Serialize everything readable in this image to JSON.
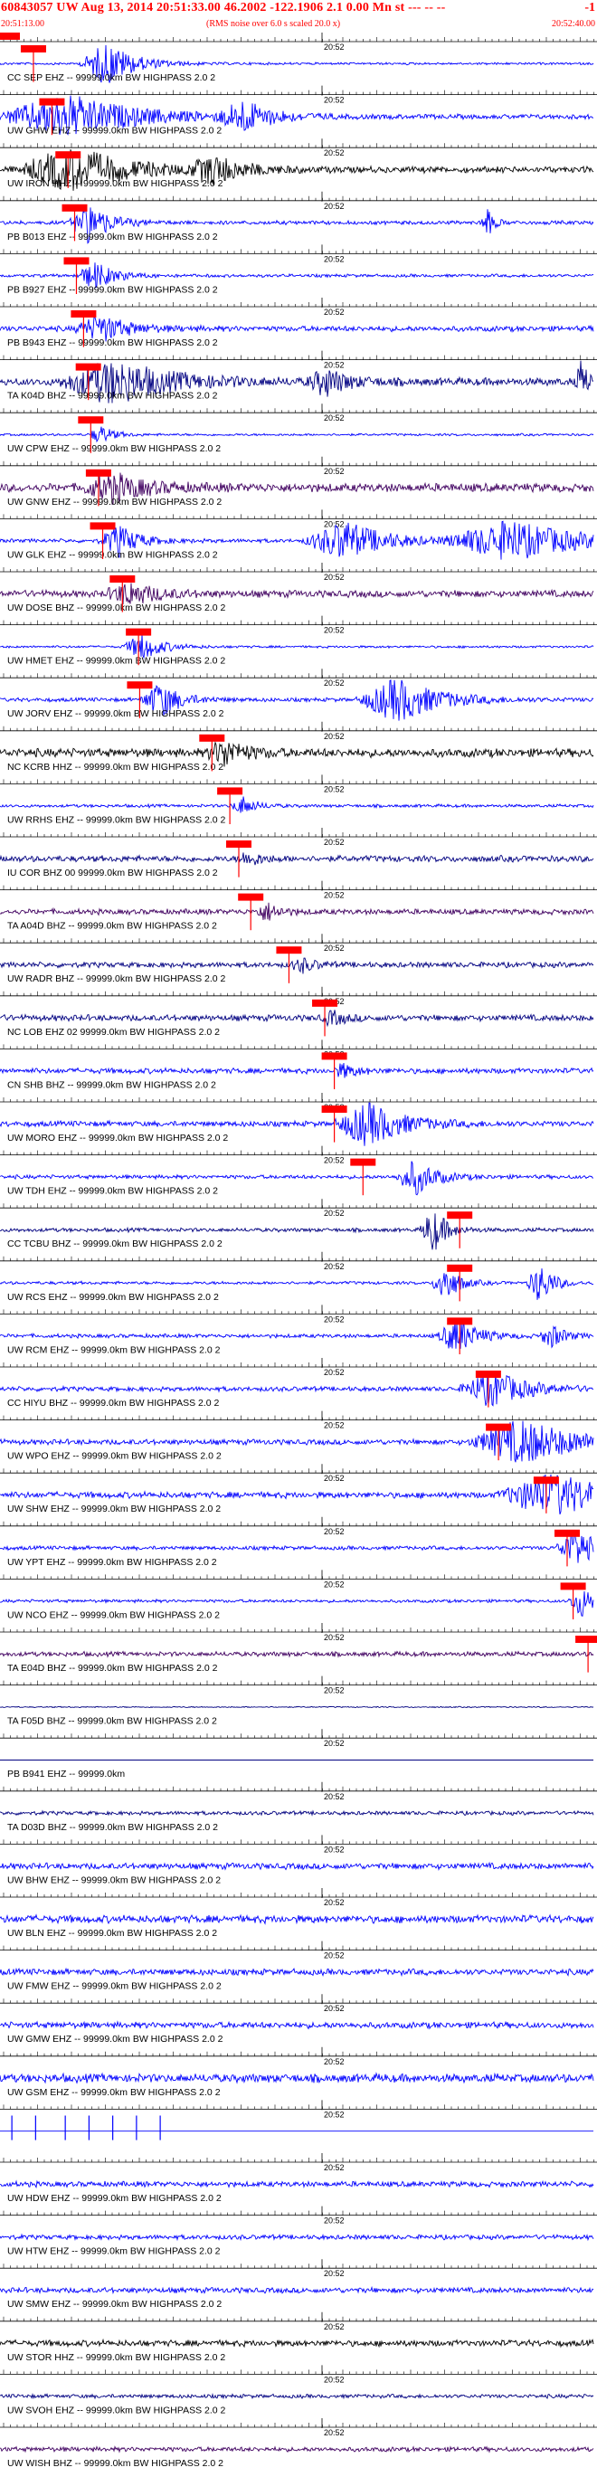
{
  "header": {
    "title": "60843057 UW Aug 13, 2014 20:51:33.00   46.2002 -122.1906  2.1 0.00 Mn st --- -- --",
    "right_label": "-1",
    "start_time": "20:51:13.00",
    "noise_note": "(RMS noise over 6.0 s scaled 20.0 x)",
    "end_time": "20:52:40.00",
    "minute_label": "20:52"
  },
  "colors": {
    "header_text": "#ff0000",
    "trace_blue": "#0000ff",
    "trace_navy": "#000080",
    "trace_black": "#000000",
    "trace_purple": "#400060",
    "pick_marker": "#ff0000",
    "tick_line": "#000000"
  },
  "channels": [
    {
      "label": "CC SEP EHZ -- 99999.0km BW  HIGHPASS  2.0  2",
      "color": "blue",
      "pick": 0.056,
      "bursts": [
        [
          0.18,
          0.04,
          1.0
        ]
      ],
      "noise": 0.06
    },
    {
      "label": "UW GHW EHZ -- 99999.0km BW  HIGHPASS  2.0  2",
      "color": "blue",
      "pick": 0.087,
      "bursts": [
        [
          0.11,
          0.1,
          1.0
        ],
        [
          0.41,
          0.04,
          0.7
        ]
      ],
      "noise": 0.12
    },
    {
      "label": "UW IRON HHZ -- 99999.0km BW  HIGHPASS  2.0  2",
      "color": "black",
      "pick": 0.114,
      "bursts": [
        [
          0.12,
          0.08,
          1.0
        ],
        [
          0.36,
          0.04,
          0.6
        ]
      ],
      "noise": 0.16
    },
    {
      "label": "PB B013 EHZ -- 99999.0km BW  HIGHPASS  2.0  2",
      "color": "blue",
      "pick": 0.125,
      "bursts": [
        [
          0.15,
          0.03,
          0.9
        ],
        [
          0.82,
          0.01,
          0.7
        ]
      ],
      "noise": 0.1
    },
    {
      "label": "PB B927 EHZ -- 99999.0km BW  HIGHPASS  2.0  2",
      "color": "blue",
      "pick": 0.128,
      "bursts": [
        [
          0.16,
          0.03,
          0.6
        ]
      ],
      "noise": 0.08
    },
    {
      "label": "PB B943 EHZ -- 99999.0km BW  HIGHPASS  2.0  2",
      "color": "blue",
      "pick": 0.14,
      "bursts": [
        [
          0.17,
          0.04,
          0.6
        ]
      ],
      "noise": 0.14
    },
    {
      "label": "TA K04D BHZ -- 99999.0km BW  HIGHPASS  2.0  2",
      "color": "navy",
      "pick": 0.148,
      "bursts": [
        [
          0.19,
          0.08,
          1.0
        ],
        [
          0.55,
          0.03,
          0.6
        ],
        [
          0.98,
          0.01,
          0.9
        ]
      ],
      "noise": 0.2
    },
    {
      "label": "UW CPW EHZ -- 99999.0km BW  HIGHPASS  2.0  2",
      "color": "blue",
      "pick": 0.152,
      "bursts": [
        [
          0.17,
          0.02,
          0.4
        ]
      ],
      "noise": 0.06
    },
    {
      "label": "UW GNW EHZ -- 99999.0km BW  HIGHPASS  2.0  2",
      "color": "purple",
      "pick": 0.165,
      "bursts": [
        [
          0.19,
          0.05,
          0.6
        ]
      ],
      "noise": 0.22
    },
    {
      "label": "UW GLK EHZ -- 99999.0km BW  HIGHPASS  2.0  2",
      "color": "blue",
      "pick": 0.172,
      "bursts": [
        [
          0.2,
          0.03,
          0.7
        ],
        [
          0.58,
          0.06,
          0.9
        ],
        [
          0.86,
          0.1,
          0.9
        ]
      ],
      "noise": 0.1
    },
    {
      "label": "UW DOSE BHZ -- 99999.0km BW  HIGHPASS  2.0  2",
      "color": "purple",
      "pick": 0.205,
      "bursts": [
        [
          0.22,
          0.04,
          0.5
        ]
      ],
      "noise": 0.18
    },
    {
      "label": "UW HMET EHZ -- 99999.0km BW  HIGHPASS  2.0  2",
      "color": "blue",
      "pick": 0.232,
      "bursts": [
        [
          0.24,
          0.03,
          0.6
        ]
      ],
      "noise": 0.06
    },
    {
      "label": "UW JORV EHZ -- 99999.0km BW  HIGHPASS  2.0  2",
      "color": "blue",
      "pick": 0.234,
      "bursts": [
        [
          0.27,
          0.03,
          0.8
        ],
        [
          0.67,
          0.06,
          1.0
        ]
      ],
      "noise": 0.1
    },
    {
      "label": "NC KCRB HHZ -- 99999.0km BW  HIGHPASS  2.0  2",
      "color": "black",
      "pick": 0.355,
      "bursts": [
        [
          0.38,
          0.03,
          0.6
        ]
      ],
      "noise": 0.22
    },
    {
      "label": "UW RRHS EHZ -- 99999.0km BW  HIGHPASS  2.0  2",
      "color": "blue",
      "pick": 0.385,
      "bursts": [
        [
          0.41,
          0.02,
          0.4
        ]
      ],
      "noise": 0.08
    },
    {
      "label": "IU COR BHZ 00 99999.0km BW  HIGHPASS  2.0  2",
      "color": "navy",
      "pick": 0.4,
      "bursts": [
        [
          0.42,
          0.02,
          0.3
        ]
      ],
      "noise": 0.16
    },
    {
      "label": "TA A04D BHZ -- 99999.0km BW  HIGHPASS  2.0  2",
      "color": "purple",
      "pick": 0.42,
      "bursts": [
        [
          0.45,
          0.02,
          0.4
        ]
      ],
      "noise": 0.14
    },
    {
      "label": "UW RADR BHZ -- 99999.0km BW  HIGHPASS  2.0  2",
      "color": "navy",
      "pick": 0.484,
      "bursts": [
        [
          0.51,
          0.02,
          0.3
        ]
      ],
      "noise": 0.14
    },
    {
      "label": "NC LOB EHZ 02 99999.0km BW  HIGHPASS  2.0  2",
      "color": "navy",
      "pick": 0.544,
      "bursts": [
        [
          0.56,
          0.02,
          0.3
        ]
      ],
      "noise": 0.16
    },
    {
      "label": "CN SHB BHZ -- 99999.0km BW  HIGHPASS  2.0  2",
      "color": "blue",
      "pick": 0.56,
      "bursts": [
        [
          0.58,
          0.02,
          0.3
        ]
      ],
      "noise": 0.14
    },
    {
      "label": "UW MORO EHZ -- 99999.0km BW  HIGHPASS  2.0  2",
      "color": "blue",
      "pick": 0.56,
      "bursts": [
        [
          0.62,
          0.05,
          1.0
        ]
      ],
      "noise": 0.14
    },
    {
      "label": "UW TDH EHZ -- 99999.0km BW  HIGHPASS  2.0  2",
      "color": "blue",
      "pick": 0.608,
      "bursts": [
        [
          0.7,
          0.03,
          0.8
        ]
      ],
      "noise": 0.1
    },
    {
      "label": "CC TCBU BHZ -- 99999.0km BW  HIGHPASS  2.0  2",
      "color": "navy",
      "pick": 0.77,
      "bursts": [
        [
          0.73,
          0.02,
          1.0
        ]
      ],
      "noise": 0.1
    },
    {
      "label": "UW RCS EHZ -- 99999.0km BW  HIGHPASS  2.0  2",
      "color": "blue",
      "pick": 0.77,
      "bursts": [
        [
          0.75,
          0.02,
          0.9
        ],
        [
          0.91,
          0.02,
          0.9
        ]
      ],
      "noise": 0.08
    },
    {
      "label": "UW RCM EHZ -- 99999.0km BW  HIGHPASS  2.0  2",
      "color": "blue",
      "pick": 0.77,
      "bursts": [
        [
          0.77,
          0.03,
          0.8
        ],
        [
          0.93,
          0.02,
          0.5
        ]
      ],
      "noise": 0.1
    },
    {
      "label": "CC HIYU BHZ -- 99999.0km BW  HIGHPASS  2.0  2",
      "color": "blue",
      "pick": 0.818,
      "bursts": [
        [
          0.83,
          0.05,
          0.8
        ]
      ],
      "noise": 0.12
    },
    {
      "label": "UW WPO EHZ -- 99999.0km BW  HIGHPASS  2.0  2",
      "color": "blue",
      "pick": 0.835,
      "bursts": [
        [
          0.88,
          0.08,
          1.0
        ]
      ],
      "noise": 0.14
    },
    {
      "label": "UW SHW EHZ -- 99999.0km BW  HIGHPASS  2.0  2",
      "color": "blue",
      "pick": 0.915,
      "bursts": [
        [
          0.93,
          0.08,
          1.0
        ]
      ],
      "noise": 0.16
    },
    {
      "label": "UW YPT EHZ -- 99999.0km BW  HIGHPASS  2.0  2",
      "color": "blue",
      "pick": 0.95,
      "bursts": [
        [
          0.97,
          0.03,
          0.9
        ]
      ],
      "noise": 0.1
    },
    {
      "label": "UW NCO EHZ -- 99999.0km BW  HIGHPASS  2.0  2",
      "color": "blue",
      "pick": 0.96,
      "bursts": [
        [
          0.98,
          0.02,
          0.7
        ]
      ],
      "noise": 0.08
    },
    {
      "label": "TA E04D BHZ -- 99999.0km BW  HIGHPASS  2.0  2",
      "color": "purple",
      "pick": 0.985,
      "bursts": [],
      "noise": 0.12
    },
    {
      "label": "TA F05D BHZ -- 99999.0km BW  HIGHPASS  2.0  2",
      "color": "navy",
      "pick": null,
      "bursts": [],
      "noise": 0.03
    },
    {
      "label": "PB B941 EHZ -- 99999.0km",
      "color": "navy",
      "pick": null,
      "bursts": [],
      "noise": 0.0
    },
    {
      "label": "TA D03D BHZ -- 99999.0km BW  HIGHPASS  2.0  2",
      "color": "navy",
      "pick": null,
      "bursts": [],
      "noise": 0.1
    },
    {
      "label": "UW BHW EHZ -- 99999.0km BW  HIGHPASS  2.0  2",
      "color": "blue",
      "pick": null,
      "bursts": [],
      "noise": 0.16
    },
    {
      "label": "UW BLN EHZ -- 99999.0km BW  HIGHPASS  2.0  2",
      "color": "blue",
      "pick": null,
      "bursts": [],
      "noise": 0.2
    },
    {
      "label": "UW FMW EHZ -- 99999.0km BW  HIGHPASS  2.0  2",
      "color": "blue",
      "pick": null,
      "bursts": [],
      "noise": 0.16
    },
    {
      "label": "UW GMW EHZ -- 99999.0km BW  HIGHPASS  2.0  2",
      "color": "blue",
      "pick": null,
      "bursts": [],
      "noise": 0.16
    },
    {
      "label": "UW GSM EHZ -- 99999.0km BW  HIGHPASS  2.0  2",
      "color": "blue",
      "pick": null,
      "bursts": [],
      "noise": 0.22
    },
    {
      "label": "",
      "color": "blue",
      "pick": null,
      "bursts": [],
      "noise": 0.0,
      "spikes": [
        0.02,
        0.06,
        0.11,
        0.15,
        0.19,
        0.23,
        0.27
      ]
    },
    {
      "label": "UW HDW EHZ -- 99999.0km BW  HIGHPASS  2.0  2",
      "color": "blue",
      "pick": null,
      "bursts": [],
      "noise": 0.14
    },
    {
      "label": "UW HTW EHZ -- 99999.0km BW  HIGHPASS  2.0  2",
      "color": "blue",
      "pick": null,
      "bursts": [],
      "noise": 0.12
    },
    {
      "label": "UW SMW EHZ -- 99999.0km BW  HIGHPASS  2.0  2",
      "color": "blue",
      "pick": null,
      "bursts": [],
      "noise": 0.14
    },
    {
      "label": "UW STOR HHZ -- 99999.0km BW  HIGHPASS  2.0  2",
      "color": "black",
      "pick": null,
      "bursts": [],
      "noise": 0.16
    },
    {
      "label": "UW SVOH EHZ -- 99999.0km BW  HIGHPASS  2.0  2",
      "color": "navy",
      "pick": null,
      "bursts": [],
      "noise": 0.1
    },
    {
      "label": "UW WISH BHZ -- 99999.0km BW  HIGHPASS  2.0  2",
      "color": "purple",
      "pick": null,
      "bursts": [],
      "noise": 0.12
    }
  ]
}
